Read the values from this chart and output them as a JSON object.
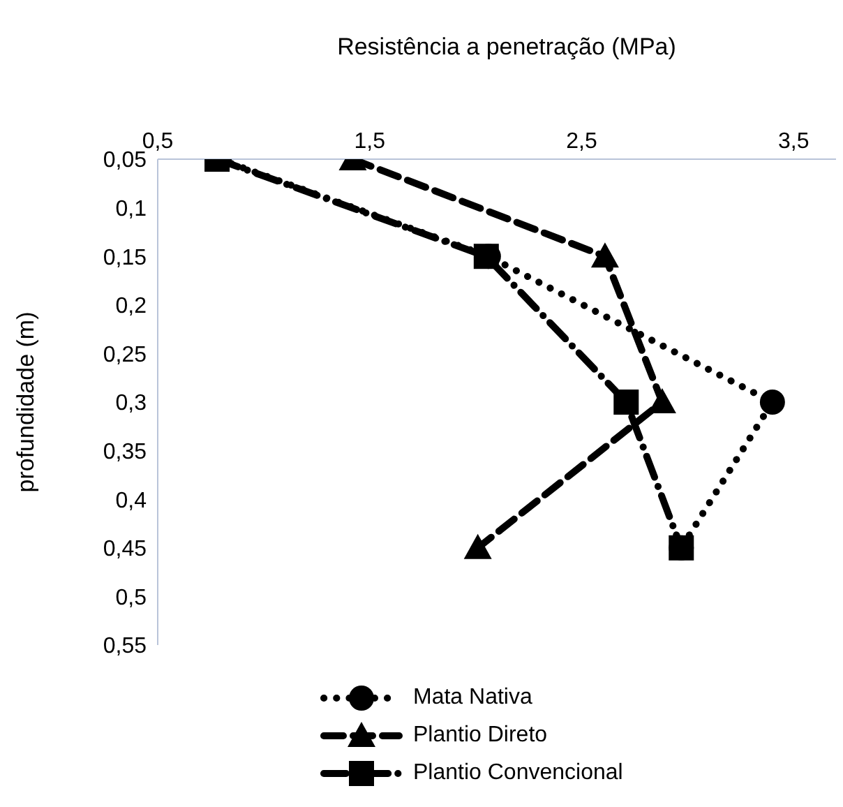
{
  "chart_data": {
    "type": "line",
    "xlabel": "Resistência a penetração (MPa)",
    "ylabel": "profundidade (m)",
    "x": [
      0.05,
      0.15,
      0.3,
      0.45
    ],
    "series": [
      {
        "name": "Mata Nativa",
        "color": "#000000",
        "values": [
          0.79,
          2.06,
          3.4,
          2.97
        ],
        "marker": "circle",
        "line_style": "dotted"
      },
      {
        "name": "Plantio Direto",
        "color": "#000000",
        "values": [
          1.42,
          2.61,
          2.88,
          2.01
        ],
        "marker": "triangle",
        "line_style": "dashed"
      },
      {
        "name": "Plantio Convencional",
        "color": "#000000",
        "values": [
          0.78,
          2.05,
          2.71,
          2.97
        ],
        "marker": "square",
        "line_style": "dashdot"
      }
    ],
    "orientation": "horizontal",
    "xlim": [
      0.5,
      3.7
    ],
    "xticks": [
      {
        "value": 0.5,
        "label": "0,5"
      },
      {
        "value": 1.5,
        "label": "1,5"
      },
      {
        "value": 2.5,
        "label": "2,5"
      },
      {
        "value": 3.5,
        "label": "3,5"
      }
    ],
    "ylim": [
      0.55,
      0.05
    ],
    "yticks": [
      {
        "value": 0.05,
        "label": "0,05"
      },
      {
        "value": 0.1,
        "label": "0,1"
      },
      {
        "value": 0.15,
        "label": "0,15"
      },
      {
        "value": 0.2,
        "label": "0,2"
      },
      {
        "value": 0.25,
        "label": "0,25"
      },
      {
        "value": 0.3,
        "label": "0,3"
      },
      {
        "value": 0.35,
        "label": "0,35"
      },
      {
        "value": 0.4,
        "label": "0,4"
      },
      {
        "value": 0.45,
        "label": "0,45"
      },
      {
        "value": 0.5,
        "label": "0,5"
      },
      {
        "value": 0.55,
        "label": "0,55"
      }
    ],
    "grid": false,
    "legend": "bottom"
  }
}
